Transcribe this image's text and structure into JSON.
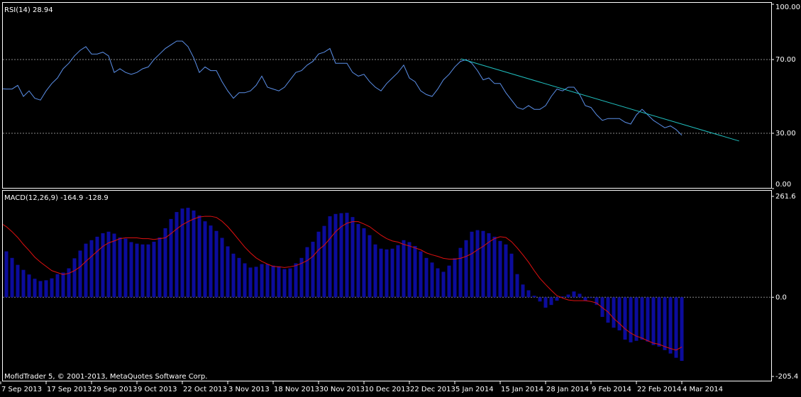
{
  "chart_data": [
    {
      "type": "line",
      "title": "RSI(14) 28.94",
      "color": "#5b8fe8",
      "ylim": [
        0,
        100
      ],
      "yticks": [
        {
          "value": 100,
          "label": "100.00"
        },
        {
          "value": 70,
          "label": "70.00"
        },
        {
          "value": 30,
          "label": "30.00"
        },
        {
          "value": 0,
          "label": "0.00"
        }
      ],
      "grid": true,
      "values": [
        54.2,
        54,
        54,
        56,
        50,
        53,
        49,
        48,
        53,
        57,
        60,
        65,
        68,
        72,
        75,
        77,
        73,
        73,
        74,
        72,
        63,
        65,
        63,
        62,
        63,
        65,
        66,
        70,
        73,
        76,
        78,
        80,
        80,
        77,
        71,
        63,
        66,
        64,
        64,
        58,
        53,
        49,
        52,
        52,
        53,
        56,
        61,
        55,
        54,
        53,
        55,
        59,
        63,
        64,
        67,
        69,
        73,
        74,
        76,
        68,
        68,
        68,
        63,
        61,
        62,
        58,
        55,
        53,
        57,
        60,
        63,
        67,
        60,
        58,
        53,
        51,
        50,
        54,
        59,
        62,
        66,
        69,
        70,
        68,
        64,
        59,
        60,
        57,
        57,
        52,
        48,
        44,
        43,
        45,
        43,
        43,
        45,
        50,
        54,
        53,
        55,
        55,
        51,
        45,
        44,
        40,
        37,
        38,
        38,
        38,
        36,
        35,
        40,
        43,
        40,
        37,
        35,
        33,
        34,
        32,
        28.94
      ],
      "trendline": {
        "x": [
          81.1,
          130.1
        ],
        "y": [
          70.4,
          25.8
        ],
        "color": "#20c0c0"
      }
    },
    {
      "type": "macd",
      "title": "MACD(12,26,9) -164.9 -128.9",
      "annotation": "MofidTrader 5, © 2001-2013, MetaQuotes Software Corp.",
      "ylim": [
        -205.4,
        261.6
      ],
      "yticks": [
        261.6,
        {
          "value": 0,
          "label": "0.0"
        },
        -205.4
      ],
      "grid": true,
      "categories": [
        "7 Sep 2013",
        null,
        null,
        null,
        null,
        null,
        null,
        null,
        "17 Sep 2013",
        null,
        null,
        null,
        null,
        null,
        null,
        null,
        "29 Sep 2013",
        null,
        null,
        null,
        null,
        null,
        null,
        null,
        "9 Oct 2013",
        null,
        null,
        null,
        null,
        null,
        null,
        null,
        "22 Oct 2013",
        null,
        null,
        null,
        null,
        null,
        null,
        null,
        "3 Nov 2013",
        null,
        null,
        null,
        null,
        null,
        null,
        null,
        "18 Nov 2013",
        null,
        null,
        null,
        null,
        null,
        null,
        null,
        "30 Nov 2013",
        null,
        null,
        null,
        null,
        null,
        null,
        null,
        "10 Dec 2013",
        null,
        null,
        null,
        null,
        null,
        null,
        null,
        "22 Dec 2013",
        null,
        null,
        null,
        null,
        null,
        null,
        null,
        "5 Jan 2014",
        null,
        null,
        null,
        null,
        null,
        null,
        null,
        "15 Jan 2014",
        null,
        null,
        null,
        null,
        null,
        null,
        null,
        "28 Jan 2014",
        null,
        null,
        null,
        null,
        null,
        null,
        null,
        "9 Feb 2014",
        null,
        null,
        null,
        null,
        null,
        null,
        null,
        "22 Feb 2014",
        null,
        null,
        null,
        null,
        null,
        null,
        null,
        "4 Mar 2014"
      ],
      "series": [
        {
          "color": "#0c0c9c",
          "values": [
            128,
            119,
            102,
            84,
            71,
            59,
            48,
            42,
            44,
            49,
            60,
            64,
            75,
            101,
            121,
            139,
            148,
            157,
            166,
            170,
            165,
            155,
            152,
            143,
            139,
            137,
            137,
            144,
            155,
            179,
            203,
            221,
            230,
            232,
            225,
            212,
            197,
            186,
            172,
            154,
            132,
            113,
            102,
            88,
            77,
            79,
            86,
            86,
            82,
            80,
            73,
            75,
            88,
            102,
            130,
            144,
            170,
            185,
            210,
            216,
            218,
            219,
            208,
            190,
            179,
            161,
            137,
            126,
            124,
            126,
            135,
            148,
            143,
            133,
            119,
            102,
            90,
            75,
            66,
            82,
            101,
            128,
            148,
            170,
            174,
            172,
            166,
            157,
            146,
            137,
            113,
            60,
            33,
            18,
            4,
            -11,
            -27,
            -20,
            -9,
            2,
            7,
            15,
            9,
            -9,
            -2,
            -20,
            -51,
            -66,
            -79,
            -86,
            -110,
            -117,
            -113,
            -110,
            -115,
            -124,
            -128,
            -137,
            -146,
            -157,
            -164.9
          ]
        },
        {
          "color": "#e01010",
          "values": [
            192,
            183,
            170,
            155,
            137,
            121,
            104,
            91,
            80,
            69,
            64,
            59,
            62,
            69,
            79,
            93,
            106,
            119,
            132,
            141,
            146,
            152,
            154,
            154,
            154,
            152,
            152,
            150,
            152,
            154,
            165,
            177,
            188,
            196,
            203,
            208,
            210,
            210,
            207,
            197,
            183,
            166,
            148,
            130,
            115,
            102,
            93,
            86,
            80,
            79,
            77,
            79,
            82,
            88,
            95,
            106,
            123,
            135,
            152,
            170,
            183,
            192,
            196,
            196,
            190,
            183,
            172,
            161,
            152,
            146,
            143,
            137,
            133,
            128,
            123,
            115,
            110,
            106,
            101,
            99,
            99,
            101,
            106,
            113,
            123,
            132,
            143,
            152,
            157,
            155,
            144,
            128,
            110,
            91,
            69,
            49,
            33,
            18,
            4,
            -2,
            -7,
            -9,
            -9,
            -9,
            -11,
            -15,
            -27,
            -38,
            -55,
            -68,
            -82,
            -93,
            -101,
            -106,
            -113,
            -119,
            -122,
            -128,
            -133,
            -137,
            -128.9
          ]
        }
      ]
    }
  ]
}
